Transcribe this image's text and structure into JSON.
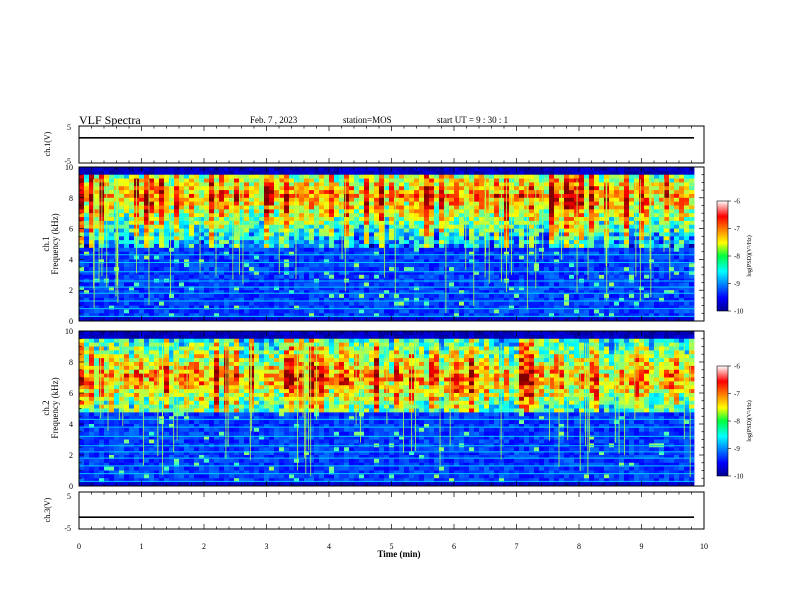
{
  "header": {
    "title": "VLF Spectra",
    "date": "Feb. 7 , 2023",
    "station": "station=MOS",
    "start_time": "start  UT =   9 : 30 : 1"
  },
  "chart_data": {
    "type": "heatmap",
    "x": {
      "label": "Time  (min)",
      "range": [
        0,
        10
      ],
      "ticks": [
        0,
        1,
        2,
        3,
        4,
        5,
        6,
        7,
        8,
        9,
        10
      ],
      "data_end": 9.84
    },
    "panels": [
      {
        "kind": "waveform",
        "ylabel": "ch.1(V)",
        "ylim": [
          -5,
          5
        ],
        "ytick_labels": [
          "5",
          "-5"
        ],
        "baseline": 1.8
      },
      {
        "kind": "spectrogram",
        "channel_label": "ch.1",
        "ylabel": "Frequency  (kHz)",
        "ylim": [
          0,
          10
        ],
        "yticks": [
          0,
          2,
          4,
          6,
          8,
          10
        ],
        "colorbar": {
          "label": "log(PSD)(V²/Hz)",
          "range": [
            -10,
            -6
          ],
          "ticks": [
            -6,
            -7,
            -8,
            -9,
            -10
          ]
        }
      },
      {
        "kind": "spectrogram",
        "channel_label": "ch.2",
        "ylabel": "Frequency  (kHz)",
        "ylim": [
          0,
          10
        ],
        "yticks": [
          0,
          2,
          4,
          6,
          8,
          10
        ],
        "colorbar": {
          "label": "log(PSD)(V²/Hz)",
          "range": [
            -10,
            -6
          ],
          "ticks": [
            -6,
            -7,
            -8,
            -9,
            -10
          ]
        }
      },
      {
        "kind": "waveform",
        "ylabel": "ch.3(V)",
        "ylim": [
          -5,
          5
        ],
        "ytick_labels": [
          "5",
          "-5"
        ],
        "baseline": -1.8
      }
    ]
  }
}
